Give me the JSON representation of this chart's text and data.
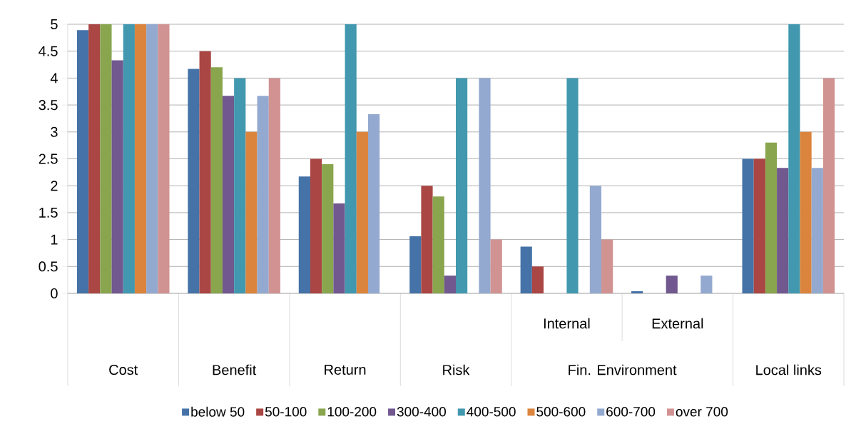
{
  "chart_data": {
    "type": "bar",
    "categories": [
      "Cost",
      "Benefit",
      "Return",
      "Risk",
      "Internal",
      "External",
      "Local links"
    ],
    "series": [
      {
        "name": "below 50",
        "color": "#4572a7",
        "values": [
          4.89,
          4.17,
          2.17,
          1.06,
          0.87,
          0.04,
          2.5
        ]
      },
      {
        "name": "50-100",
        "color": "#aa4643",
        "values": [
          5,
          4.5,
          2.5,
          2,
          0.5,
          null,
          2.5
        ]
      },
      {
        "name": "100-200",
        "color": "#89a54e",
        "values": [
          5,
          4.2,
          2.4,
          1.8,
          null,
          null,
          2.8
        ]
      },
      {
        "name": "300-400",
        "color": "#71588f",
        "values": [
          4.33,
          3.67,
          1.67,
          0.33,
          null,
          0.33,
          2.33
        ]
      },
      {
        "name": "400-500",
        "color": "#4198af",
        "values": [
          5,
          4,
          5,
          4,
          4,
          null,
          5
        ]
      },
      {
        "name": "500-600",
        "color": "#db843d",
        "values": [
          5,
          3,
          3,
          null,
          null,
          null,
          3
        ]
      },
      {
        "name": "600-700",
        "color": "#93a9cf",
        "values": [
          5,
          3.67,
          3.33,
          4,
          2,
          0.33,
          2.33
        ]
      },
      {
        "name": "over 700",
        "color": "#d19392",
        "values": [
          5,
          4,
          null,
          1,
          1,
          null,
          4
        ]
      }
    ],
    "annotations": [
      "Fin. Environment"
    ],
    "ylim": [
      0,
      5
    ],
    "yticks": [
      0,
      0.5,
      1,
      1.5,
      2,
      2.5,
      3,
      3.5,
      4,
      4.5,
      5
    ],
    "grid": "y",
    "legend": "bottom"
  }
}
